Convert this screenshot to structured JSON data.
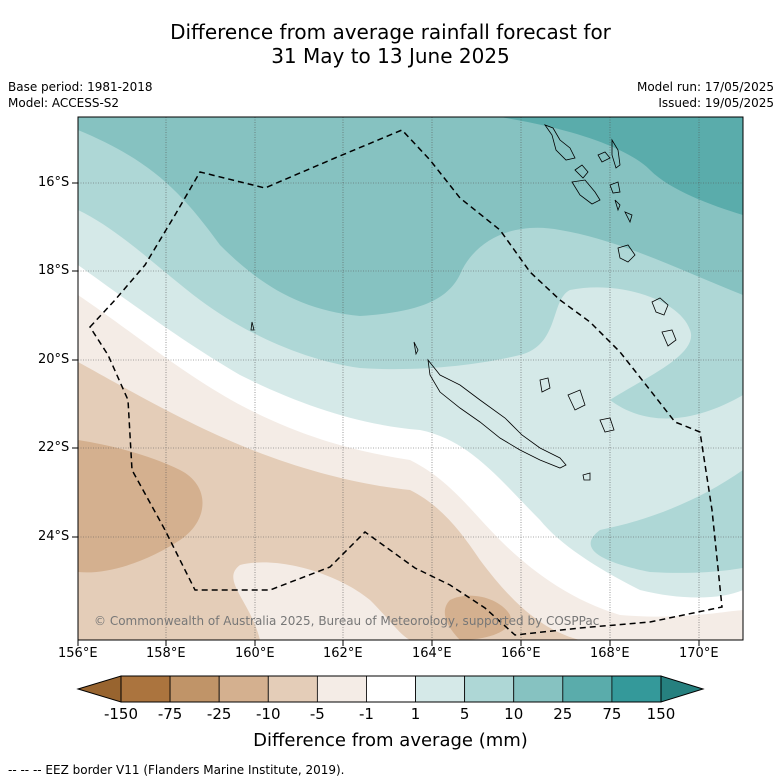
{
  "title_line1": "Difference from average rainfall forecast for",
  "title_line2": "31 May to 13 June 2025",
  "base_period": "Base period: 1981-2018",
  "model": "Model: ACCESS-S2",
  "model_run": "Model run: 17/05/2025",
  "issued": "Issued: 19/05/2025",
  "copyright": "© Commonwealth of Australia 2025, Bureau of Meteorology, supported by COSPPac",
  "lat_ticks": [
    "16°S",
    "18°S",
    "20°S",
    "22°S",
    "24°S"
  ],
  "lon_ticks": [
    "156°E",
    "158°E",
    "160°E",
    "162°E",
    "164°E",
    "166°E",
    "168°E",
    "170°E"
  ],
  "colorbar": {
    "labels": [
      "-150",
      "-75",
      "-25",
      "-10",
      "-5",
      "-1",
      "1",
      "5",
      "10",
      "25",
      "75",
      "150"
    ],
    "colors": [
      "#ab743e",
      "#c09468",
      "#d4b08f",
      "#e4cdb8",
      "#f4ece6",
      "#ffffff",
      "#d5e9e8",
      "#aed7d6",
      "#86c2c1",
      "#5aacab",
      "#34999a"
    ],
    "under_color": "#98642f",
    "over_color": "#26807f",
    "title": "Difference from average (mm)"
  },
  "legend_footer": "-- -- -- EEZ border V11 (Flanders Marine Institute, 2019)."
}
